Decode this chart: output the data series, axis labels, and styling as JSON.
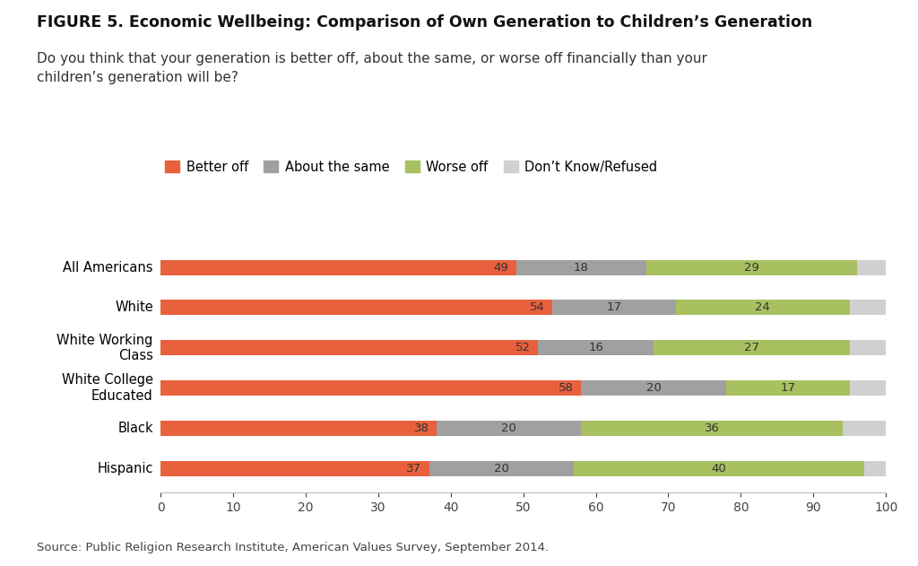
{
  "title_bold": "FIGURE 5. Economic Wellbeing: Comparison of Own Generation to Children’s Generation",
  "subtitle": "Do you think that your generation is better off, about the same, or worse off financially than your\nchildren’s generation will be?",
  "source": "Source: Public Religion Research Institute, American Values Survey, September 2014.",
  "categories": [
    "All Americans",
    "White",
    "White Working\nClass",
    "White College\nEducated",
    "Black",
    "Hispanic"
  ],
  "better_off": [
    49,
    54,
    52,
    58,
    38,
    37
  ],
  "about_same": [
    18,
    17,
    16,
    20,
    20,
    20
  ],
  "worse_off": [
    29,
    24,
    27,
    17,
    36,
    40
  ],
  "dont_know": [
    4,
    5,
    5,
    5,
    6,
    3
  ],
  "color_better": "#E8603C",
  "color_same": "#A0A0A0",
  "color_worse": "#A8C060",
  "color_dont": "#D0D0D0",
  "background": "#FFFFFF",
  "xlim": [
    0,
    100
  ],
  "xticks": [
    0,
    10,
    20,
    30,
    40,
    50,
    60,
    70,
    80,
    90,
    100
  ],
  "bar_height": 0.38,
  "legend_labels": [
    "Better off",
    "About the same",
    "Worse off",
    "Don’t Know/Refused"
  ],
  "label_color": "#333333"
}
